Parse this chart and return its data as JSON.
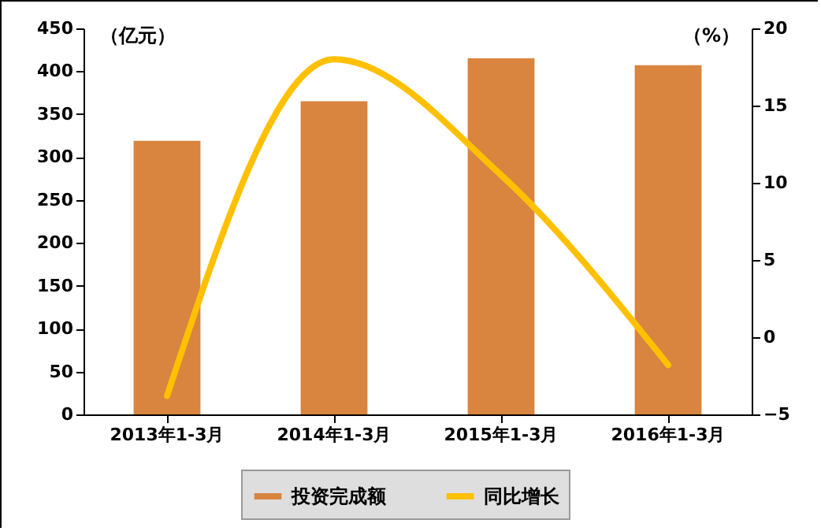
{
  "chart_data": {
    "type": "bar",
    "categories": [
      "2013年1-3月",
      "2014年1-3月",
      "2015年1-3月",
      "2016年1-3月"
    ],
    "series": [
      {
        "name": "投资完成额",
        "color": "#d9843f",
        "values": [
          319,
          365,
          415,
          407
        ]
      },
      {
        "name": "同比增长",
        "type": "line",
        "axis": "y2",
        "color": "#ffc000",
        "values": [
          -3.8,
          18.0,
          10.5,
          -1.8
        ]
      }
    ],
    "ylabel": "（亿元）",
    "y2label": "（%）",
    "ylim": [
      0,
      450
    ],
    "yticks": [
      0,
      50,
      100,
      150,
      200,
      250,
      300,
      350,
      400,
      450
    ],
    "y2lim": [
      -5,
      20
    ],
    "y2ticks": [
      -5,
      0,
      5,
      10,
      15,
      20
    ],
    "legend": "bottom"
  }
}
